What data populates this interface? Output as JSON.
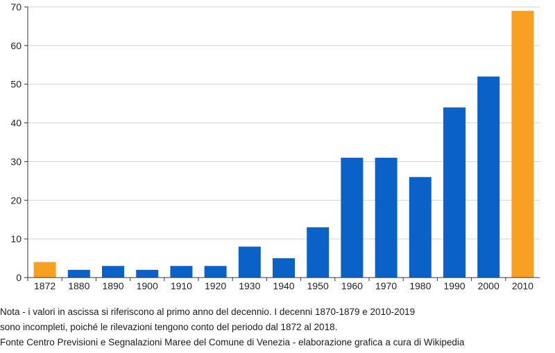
{
  "chart_data": {
    "type": "bar",
    "categories": [
      "1872",
      "1880",
      "1890",
      "1900",
      "1910",
      "1920",
      "1930",
      "1940",
      "1950",
      "1960",
      "1970",
      "1980",
      "1990",
      "2000",
      "2010"
    ],
    "values": [
      4,
      2,
      3,
      2,
      3,
      3,
      8,
      5,
      13,
      31,
      31,
      26,
      44,
      52,
      69
    ],
    "bar_colors": [
      "#f7a021",
      "#0a62c9",
      "#0a62c9",
      "#0a62c9",
      "#0a62c9",
      "#0a62c9",
      "#0a62c9",
      "#0a62c9",
      "#0a62c9",
      "#0a62c9",
      "#0a62c9",
      "#0a62c9",
      "#0a62c9",
      "#0a62c9",
      "#f7a021"
    ],
    "ylim": [
      0,
      70
    ],
    "yticks": [
      0,
      10,
      20,
      30,
      40,
      50,
      60,
      70
    ],
    "grid": true,
    "title": "",
    "xlabel": "",
    "ylabel": ""
  },
  "notes": {
    "line1": "Nota - i valori in ascissa si riferiscono al primo anno del decennio. I decenni 1870-1879 e 2010-2019",
    "line2": "sono incompleti, poiché le rilevazioni tengono conto del periodo dal 1872 al 2018.",
    "source": "Fonte Centro Previsioni e Segnalazioni Maree del Comune di Venezia - elaborazione grafica a cura di Wikipedia"
  },
  "colors": {
    "blue": "#0a62c9",
    "orange": "#f7a021",
    "grid": "#d2d2d2",
    "axis": "#333333"
  }
}
